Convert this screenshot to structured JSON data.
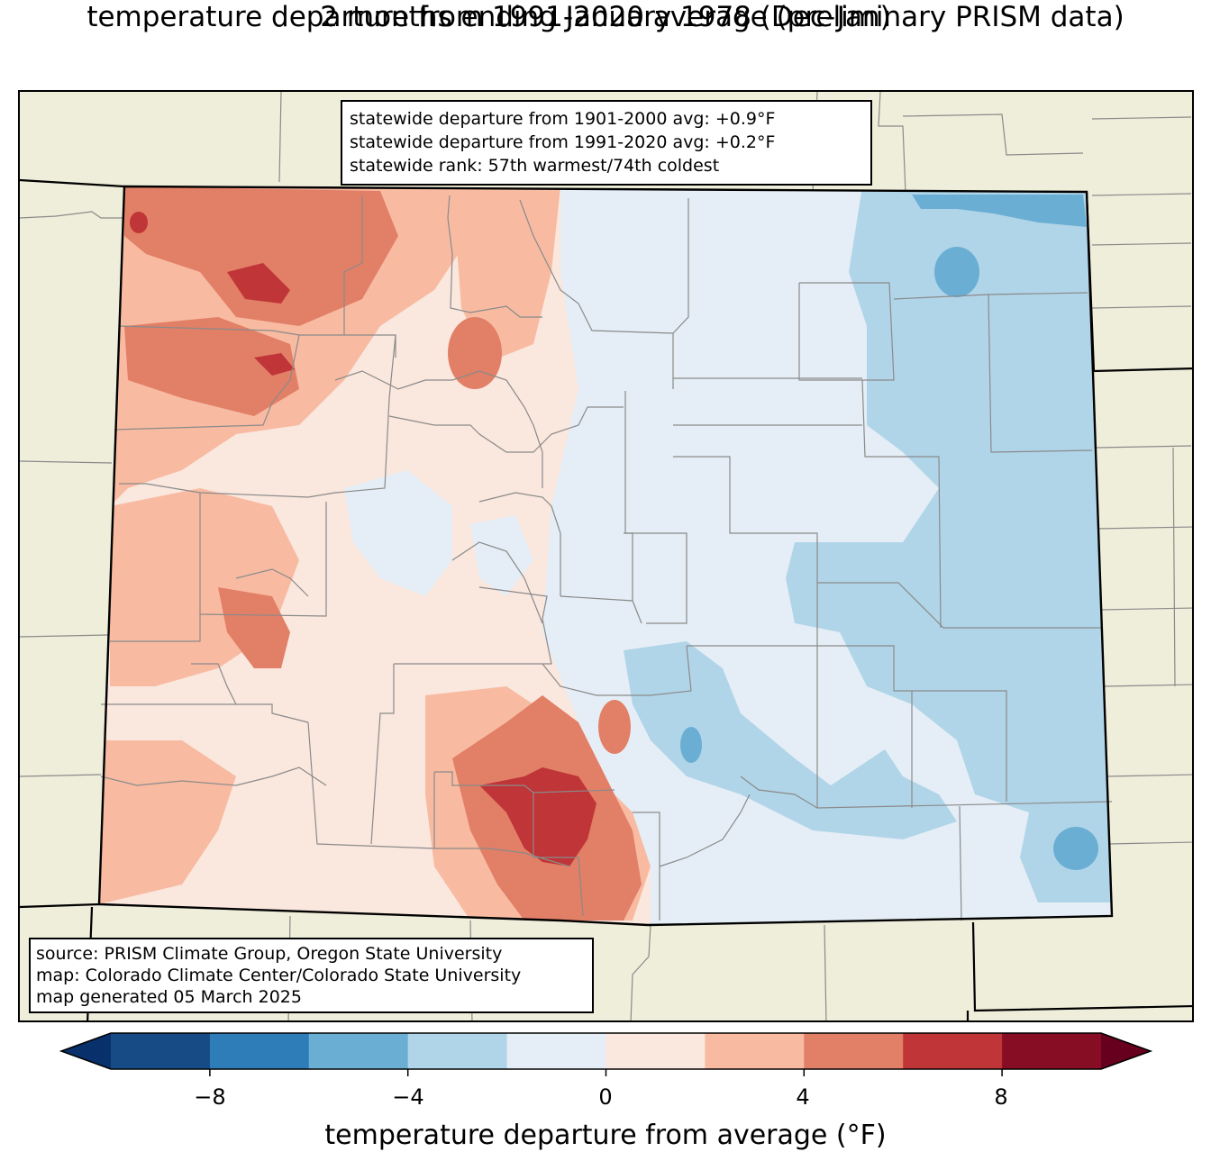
{
  "title": {
    "line1": "temperature departure from 1991-2020 average (preliminary PRISM data)",
    "line2": "2 months ending January 1978 (Dec-Jan)"
  },
  "stats": {
    "line1": "statewide departure from 1901-2000 avg: +0.9°F",
    "line2": "statewide departure from 1991-2020 avg: +0.2°F",
    "line3": "statewide rank: 57th warmest/74th coldest"
  },
  "source": {
    "line1": "source: PRISM Climate Group, Oregon State University",
    "line2": "map: Colorado Climate Center/Colorado State University",
    "line3": "map generated 05 March 2025"
  },
  "colorbar": {
    "title": "temperature departure from average (°F)",
    "ticks": [
      "−8",
      "−4",
      "0",
      "4",
      "8"
    ],
    "colors": [
      "#08306b",
      "#164b85",
      "#2f7db8",
      "#6aaed3",
      "#b1d5e8",
      "#e5eef6",
      "#fae7de",
      "#f8bba2",
      "#e27f67",
      "#c03537",
      "#870d24",
      "#67001f"
    ]
  },
  "map": {
    "background_color": "#efeedb",
    "state_outline_color": "#000000",
    "county_line_color": "#8a8a8a"
  }
}
